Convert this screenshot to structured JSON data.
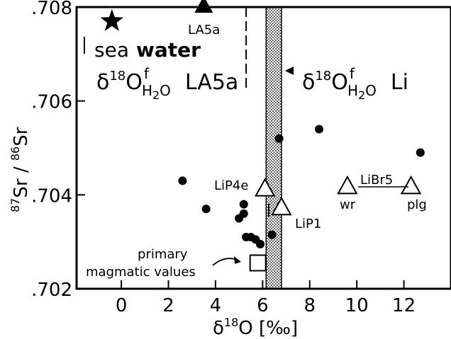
{
  "chart_data": {
    "type": "scatter",
    "xlabel_delta": "δ",
    "xlabel_sup": "18",
    "xlabel_main": "O [‰]",
    "ylabel_sup": "87",
    "ylabel_a": "Sr / ",
    "ylabel_sup2": "86",
    "ylabel_b": "Sr",
    "xlim": [
      -1.9,
      14
    ],
    "ylim": [
      0.702,
      0.708
    ],
    "xticks": [
      {
        "v": 0,
        "t": "0"
      },
      {
        "v": 2,
        "t": "2"
      },
      {
        "v": 4,
        "t": "4"
      },
      {
        "v": 6,
        "t": "6"
      },
      {
        "v": 8,
        "t": "8"
      },
      {
        "v": 10,
        "t": "10"
      },
      {
        "v": 12,
        "t": "12"
      }
    ],
    "yticks": [
      {
        "v": 0.702,
        "t": ".702"
      },
      {
        "v": 0.704,
        "t": ".704"
      },
      {
        "v": 0.706,
        "t": ".706"
      },
      {
        "v": 0.708,
        "t": ".708"
      }
    ],
    "shaded_band": {
      "x0": 6.15,
      "x1": 6.8
    },
    "la5a_line_x": 5.3,
    "points": [
      {
        "x": 2.6,
        "y": 0.7043
      },
      {
        "x": 3.6,
        "y": 0.7037
      },
      {
        "x": 5.0,
        "y": 0.7035
      },
      {
        "x": 5.2,
        "y": 0.7038
      },
      {
        "x": 5.2,
        "y": 0.7036
      },
      {
        "x": 5.3,
        "y": 0.7031
      },
      {
        "x": 5.5,
        "y": 0.7031
      },
      {
        "x": 5.7,
        "y": 0.70305
      },
      {
        "x": 5.9,
        "y": 0.70295
      },
      {
        "x": 6.4,
        "y": 0.70315
      },
      {
        "x": 6.7,
        "y": 0.7052
      },
      {
        "x": 8.4,
        "y": 0.7054
      },
      {
        "x": 12.7,
        "y": 0.7049
      }
    ],
    "seawater": {
      "x": -0.4,
      "y": 0.7077,
      "label_a": "sea",
      "label_b": "water"
    },
    "la5a": {
      "x": 3.5,
      "y": 0.708,
      "label": "LA5a"
    },
    "lip4e": {
      "x": 6.1,
      "y": 0.7041,
      "label": "LiP4e"
    },
    "lip1": {
      "x": 6.8,
      "y": 0.7037,
      "label": "LiP1"
    },
    "libr5": {
      "x_wr": 9.6,
      "x_plg": 12.3,
      "y": 0.70415,
      "label": "LiBr5",
      "wr": "wr",
      "plg": "plg"
    },
    "primary": {
      "x": 5.8,
      "y": 0.70255,
      "label_a": "primary",
      "label_b": "magmatic values"
    },
    "annot_la5a": {
      "delta": "δ",
      "sup": "18",
      "o": "O",
      "supf": "f",
      "sub": "H",
      "sub2": "2",
      "sub3": "O",
      "name": "LA5a"
    },
    "annot_li": {
      "delta": "δ",
      "sup": "18",
      "o": "O",
      "supf": "f",
      "sub": "H",
      "sub2": "2",
      "sub3": "O",
      "name": "Li"
    }
  }
}
